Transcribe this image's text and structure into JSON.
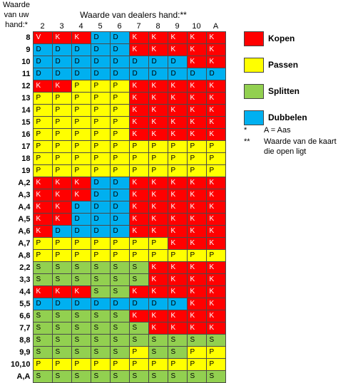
{
  "header": {
    "row_header_label": "Waarde van uw hand:*",
    "column_title": "Waarde van dealers hand:**"
  },
  "columns": [
    "2",
    "3",
    "4",
    "5",
    "6",
    "7",
    "8",
    "9",
    "10",
    "A"
  ],
  "rows": [
    {
      "label": "8",
      "cells": [
        "V",
        "K",
        "K",
        "D",
        "D",
        "K",
        "K",
        "K",
        "K",
        "K"
      ]
    },
    {
      "label": "9",
      "cells": [
        "D",
        "D",
        "D",
        "D",
        "D",
        "K",
        "K",
        "K",
        "K",
        "K"
      ]
    },
    {
      "label": "10",
      "cells": [
        "D",
        "D",
        "D",
        "D",
        "D",
        "D",
        "D",
        "D",
        "K",
        "K"
      ]
    },
    {
      "label": "11",
      "cells": [
        "D",
        "D",
        "D",
        "D",
        "D",
        "D",
        "D",
        "D",
        "D",
        "D"
      ]
    },
    {
      "label": "12",
      "cells": [
        "K",
        "K",
        "P",
        "P",
        "P",
        "K",
        "K",
        "K",
        "K",
        "K"
      ]
    },
    {
      "label": "13",
      "cells": [
        "P",
        "P",
        "P",
        "P",
        "P",
        "K",
        "K",
        "K",
        "K",
        "K"
      ]
    },
    {
      "label": "14",
      "cells": [
        "P",
        "P",
        "P",
        "P",
        "P",
        "K",
        "K",
        "K",
        "K",
        "K"
      ]
    },
    {
      "label": "15",
      "cells": [
        "P",
        "P",
        "P",
        "P",
        "P",
        "K",
        "K",
        "K",
        "K",
        "K"
      ]
    },
    {
      "label": "16",
      "cells": [
        "P",
        "P",
        "P",
        "P",
        "P",
        "K",
        "K",
        "K",
        "K",
        "K"
      ]
    },
    {
      "label": "17",
      "cells": [
        "P",
        "P",
        "P",
        "P",
        "P",
        "P",
        "P",
        "P",
        "P",
        "P"
      ]
    },
    {
      "label": "18",
      "cells": [
        "P",
        "P",
        "P",
        "P",
        "P",
        "P",
        "P",
        "P",
        "P",
        "P"
      ]
    },
    {
      "label": "19",
      "cells": [
        "P",
        "P",
        "P",
        "P",
        "P",
        "P",
        "P",
        "P",
        "P",
        "P"
      ]
    },
    {
      "label": "A,2",
      "cells": [
        "K",
        "K",
        "K",
        "D",
        "D",
        "K",
        "K",
        "K",
        "K",
        "K"
      ]
    },
    {
      "label": "A,3",
      "cells": [
        "K",
        "K",
        "K",
        "D",
        "D",
        "K",
        "K",
        "K",
        "K",
        "K"
      ]
    },
    {
      "label": "A,4",
      "cells": [
        "K",
        "K",
        "D",
        "D",
        "D",
        "K",
        "K",
        "K",
        "K",
        "K"
      ]
    },
    {
      "label": "A,5",
      "cells": [
        "K",
        "K",
        "D",
        "D",
        "D",
        "K",
        "K",
        "K",
        "K",
        "K"
      ]
    },
    {
      "label": "A,6",
      "cells": [
        "K",
        "D",
        "D",
        "D",
        "D",
        "K",
        "K",
        "K",
        "K",
        "K"
      ]
    },
    {
      "label": "A,7",
      "cells": [
        "P",
        "P",
        "P",
        "P",
        "P",
        "P",
        "P",
        "K",
        "K",
        "K"
      ]
    },
    {
      "label": "A,8",
      "cells": [
        "P",
        "P",
        "P",
        "P",
        "P",
        "P",
        "P",
        "P",
        "P",
        "P"
      ]
    },
    {
      "label": "2,2",
      "cells": [
        "S",
        "S",
        "S",
        "S",
        "S",
        "S",
        "K",
        "K",
        "K",
        "K"
      ]
    },
    {
      "label": "3,3",
      "cells": [
        "S",
        "S",
        "S",
        "S",
        "S",
        "S",
        "K",
        "K",
        "K",
        "K"
      ]
    },
    {
      "label": "4,4",
      "cells": [
        "K",
        "K",
        "K",
        "S",
        "S",
        "K",
        "K",
        "K",
        "K",
        "K"
      ]
    },
    {
      "label": "5,5",
      "cells": [
        "D",
        "D",
        "D",
        "D",
        "D",
        "D",
        "D",
        "D",
        "K",
        "K"
      ]
    },
    {
      "label": "6,6",
      "cells": [
        "S",
        "S",
        "S",
        "S",
        "S",
        "K",
        "K",
        "K",
        "K",
        "K"
      ]
    },
    {
      "label": "7,7",
      "cells": [
        "S",
        "S",
        "S",
        "S",
        "S",
        "S",
        "K",
        "K",
        "K",
        "K"
      ]
    },
    {
      "label": "8,8",
      "cells": [
        "S",
        "S",
        "S",
        "S",
        "S",
        "S",
        "S",
        "S",
        "S",
        "S"
      ]
    },
    {
      "label": "9,9",
      "cells": [
        "S",
        "S",
        "S",
        "S",
        "S",
        "P",
        "S",
        "S",
        "P",
        "P"
      ]
    },
    {
      "label": "10,10",
      "cells": [
        "P",
        "P",
        "P",
        "P",
        "P",
        "P",
        "P",
        "P",
        "P",
        "P"
      ]
    },
    {
      "label": "A,A",
      "cells": [
        "S",
        "S",
        "S",
        "S",
        "S",
        "S",
        "S",
        "S",
        "S",
        "S"
      ]
    }
  ],
  "legend": [
    {
      "name": "Kopen",
      "color": "#ff0000"
    },
    {
      "name": "Passen",
      "color": "#ffff00"
    },
    {
      "name": "Splitten",
      "color": "#92d050"
    },
    {
      "name": "Dubbelen",
      "color": "#00b0f0"
    }
  ],
  "notes": [
    {
      "mark": "*",
      "text": "A = Aas"
    },
    {
      "mark": "**",
      "text": "Waarde van de kaart die open ligt"
    }
  ]
}
